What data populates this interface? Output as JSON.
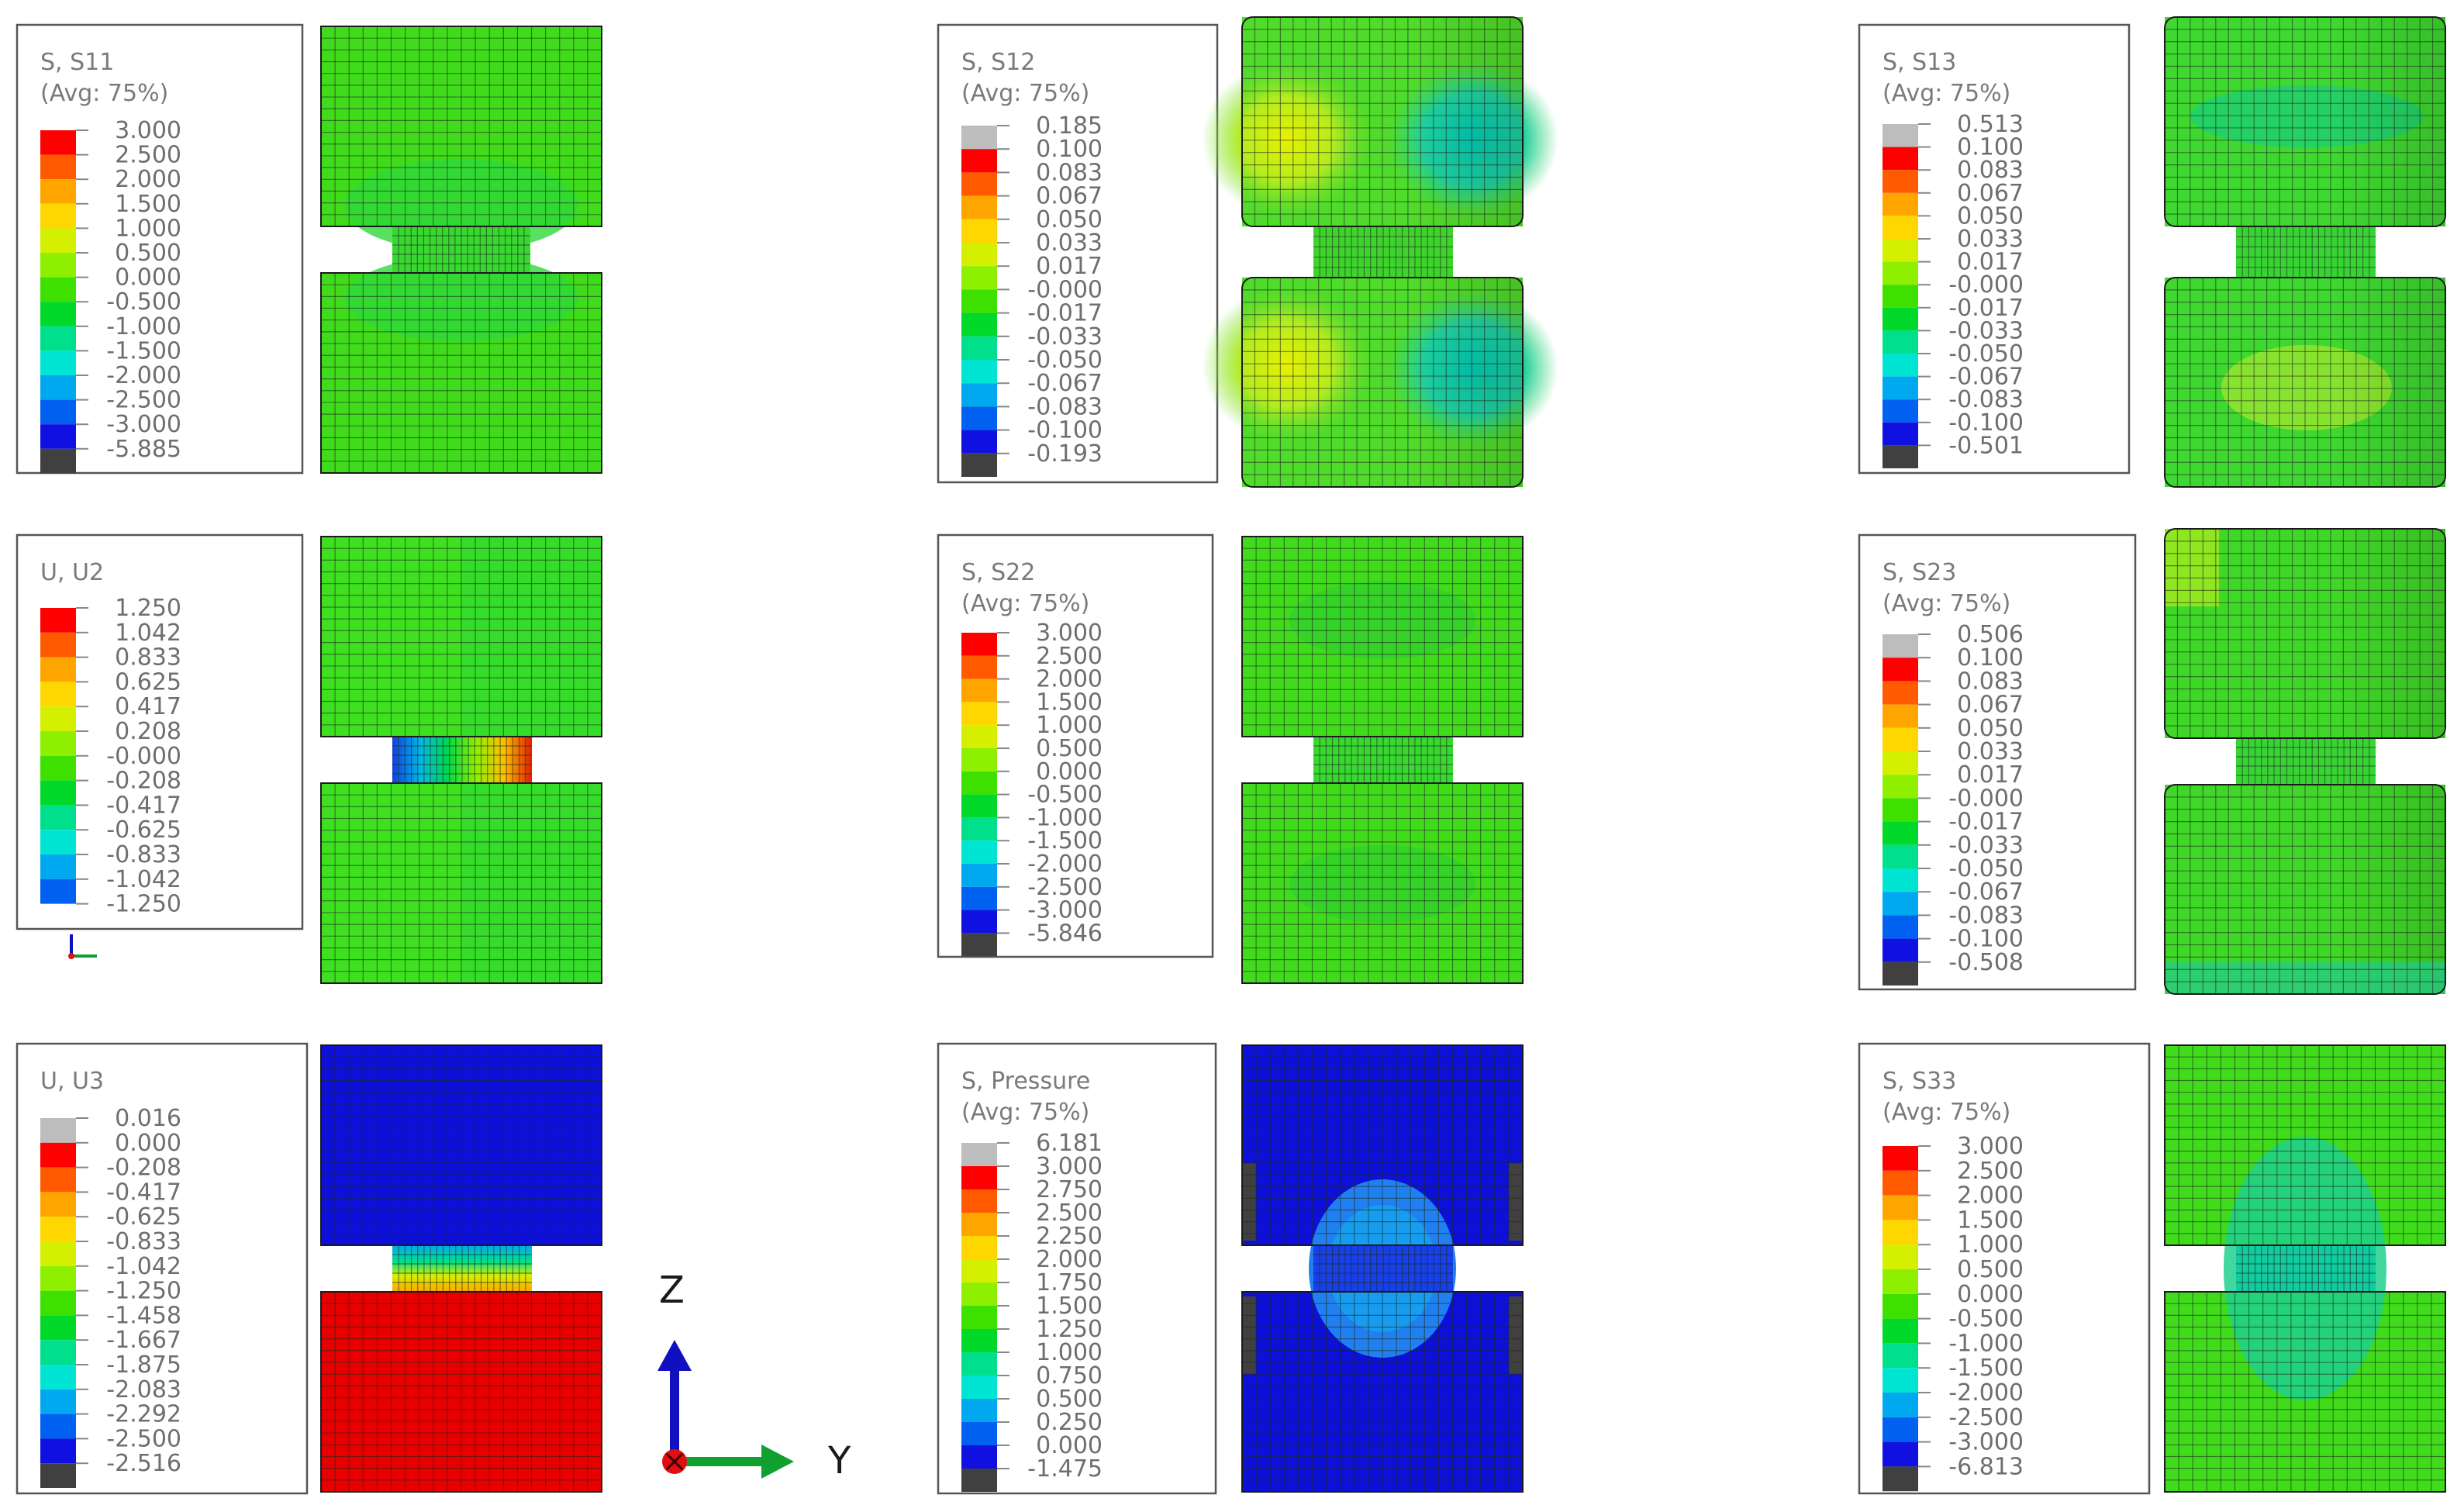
{
  "panels": [
    {
      "id": "s11",
      "title": [
        "S, S11",
        "(Avg: 75%)"
      ],
      "labels": [
        "3.000",
        "2.500",
        "2.000",
        "1.500",
        "1.000",
        "0.500",
        "0.000",
        "-0.500",
        "-1.000",
        "-1.500",
        "-2.000",
        "-2.500",
        "-3.000",
        "-5.885"
      ],
      "colors": [
        "#ff0000",
        "#ff5a00",
        "#ffa500",
        "#ffd700",
        "#d4f000",
        "#8ef000",
        "#3ee000",
        "#00d82a",
        "#00e08c",
        "#00e4d4",
        "#00a8f0",
        "#0060f0",
        "#1010e0",
        "#404040"
      ]
    },
    {
      "id": "s12",
      "title": [
        "S, S12",
        "(Avg: 75%)"
      ],
      "labels": [
        "0.185",
        "0.100",
        "0.083",
        "0.067",
        "0.050",
        "0.033",
        "0.017",
        "-0.000",
        "-0.017",
        "-0.033",
        "-0.050",
        "-0.067",
        "-0.083",
        "-0.100",
        "-0.193"
      ],
      "colors": [
        "#bdbdbd",
        "#ff0000",
        "#ff5a00",
        "#ffa500",
        "#ffd700",
        "#d4f000",
        "#8ef000",
        "#3ee000",
        "#00d82a",
        "#00e08c",
        "#00e4d4",
        "#00a8f0",
        "#0060f0",
        "#1010e0",
        "#404040"
      ]
    },
    {
      "id": "s13",
      "title": [
        "S, S13",
        "(Avg: 75%)"
      ],
      "labels": [
        "0.513",
        "0.100",
        "0.083",
        "0.067",
        "0.050",
        "0.033",
        "0.017",
        "-0.000",
        "-0.017",
        "-0.033",
        "-0.050",
        "-0.067",
        "-0.083",
        "-0.100",
        "-0.501"
      ],
      "colors": [
        "#bdbdbd",
        "#ff0000",
        "#ff5a00",
        "#ffa500",
        "#ffd700",
        "#d4f000",
        "#8ef000",
        "#3ee000",
        "#00d82a",
        "#00e08c",
        "#00e4d4",
        "#00a8f0",
        "#0060f0",
        "#1010e0",
        "#404040"
      ]
    },
    {
      "id": "u2",
      "title": [
        "U, U2"
      ],
      "labels": [
        "1.250",
        "1.042",
        "0.833",
        "0.625",
        "0.417",
        "0.208",
        "-0.000",
        "-0.208",
        "-0.417",
        "-0.625",
        "-0.833",
        "-1.042",
        "-1.250"
      ],
      "colors": [
        "#ff0000",
        "#ff5a00",
        "#ffa500",
        "#ffd700",
        "#d4f000",
        "#8ef000",
        "#3ee000",
        "#00d82a",
        "#00e08c",
        "#00e4d4",
        "#00a8f0",
        "#0060f0"
      ]
    },
    {
      "id": "s22",
      "title": [
        "S, S22",
        "(Avg: 75%)"
      ],
      "labels": [
        "3.000",
        "2.500",
        "2.000",
        "1.500",
        "1.000",
        "0.500",
        "0.000",
        "-0.500",
        "-1.000",
        "-1.500",
        "-2.000",
        "-2.500",
        "-3.000",
        "-5.846"
      ],
      "colors": [
        "#ff0000",
        "#ff5a00",
        "#ffa500",
        "#ffd700",
        "#d4f000",
        "#8ef000",
        "#3ee000",
        "#00d82a",
        "#00e08c",
        "#00e4d4",
        "#00a8f0",
        "#0060f0",
        "#1010e0",
        "#404040"
      ]
    },
    {
      "id": "s23",
      "title": [
        "S, S23",
        "(Avg: 75%)"
      ],
      "labels": [
        "0.506",
        "0.100",
        "0.083",
        "0.067",
        "0.050",
        "0.033",
        "0.017",
        "-0.000",
        "-0.017",
        "-0.033",
        "-0.050",
        "-0.067",
        "-0.083",
        "-0.100",
        "-0.508"
      ],
      "colors": [
        "#bdbdbd",
        "#ff0000",
        "#ff5a00",
        "#ffa500",
        "#ffd700",
        "#d4f000",
        "#8ef000",
        "#3ee000",
        "#00d82a",
        "#00e08c",
        "#00e4d4",
        "#00a8f0",
        "#0060f0",
        "#1010e0",
        "#404040"
      ]
    },
    {
      "id": "u3",
      "title": [
        "U, U3"
      ],
      "labels": [
        "0.016",
        "0.000",
        "-0.208",
        "-0.417",
        "-0.625",
        "-0.833",
        "-1.042",
        "-1.250",
        "-1.458",
        "-1.667",
        "-1.875",
        "-2.083",
        "-2.292",
        "-2.500",
        "-2.516"
      ],
      "colors": [
        "#bdbdbd",
        "#ff0000",
        "#ff5a00",
        "#ffa500",
        "#ffd700",
        "#d4f000",
        "#8ef000",
        "#3ee000",
        "#00d82a",
        "#00e08c",
        "#00e4d4",
        "#00a8f0",
        "#0060f0",
        "#1010e0",
        "#404040"
      ]
    },
    {
      "id": "pressure",
      "title": [
        "S, Pressure",
        "(Avg: 75%)"
      ],
      "labels": [
        "6.181",
        "3.000",
        "2.750",
        "2.500",
        "2.250",
        "2.000",
        "1.750",
        "1.500",
        "1.250",
        "1.000",
        "0.750",
        "0.500",
        "0.250",
        "0.000",
        "-1.475"
      ],
      "colors": [
        "#bdbdbd",
        "#ff0000",
        "#ff5a00",
        "#ffa500",
        "#ffd700",
        "#d4f000",
        "#8ef000",
        "#3ee000",
        "#00d82a",
        "#00e08c",
        "#00e4d4",
        "#00a8f0",
        "#0060f0",
        "#1010e0",
        "#404040"
      ]
    },
    {
      "id": "s33",
      "title": [
        "S, S33",
        "(Avg: 75%)"
      ],
      "labels": [
        "3.000",
        "2.500",
        "2.000",
        "1.500",
        "1.000",
        "0.500",
        "0.000",
        "-0.500",
        "-1.000",
        "-1.500",
        "-2.000",
        "-2.500",
        "-3.000",
        "-6.813"
      ],
      "colors": [
        "#ff0000",
        "#ff5a00",
        "#ffa500",
        "#ffd700",
        "#d4f000",
        "#8ef000",
        "#3ee000",
        "#00d82a",
        "#00e08c",
        "#00e4d4",
        "#00a8f0",
        "#0060f0",
        "#1010e0",
        "#404040"
      ]
    }
  ],
  "axes": {
    "z_label": "Z",
    "y_label": "Y",
    "z_color": "#1010c0",
    "y_color": "#10a030",
    "origin_color": "#e01010"
  },
  "colors": {
    "green": "#3ee000",
    "blue": "#1010e0",
    "red": "#ff0000",
    "gray_band": "#404040"
  }
}
